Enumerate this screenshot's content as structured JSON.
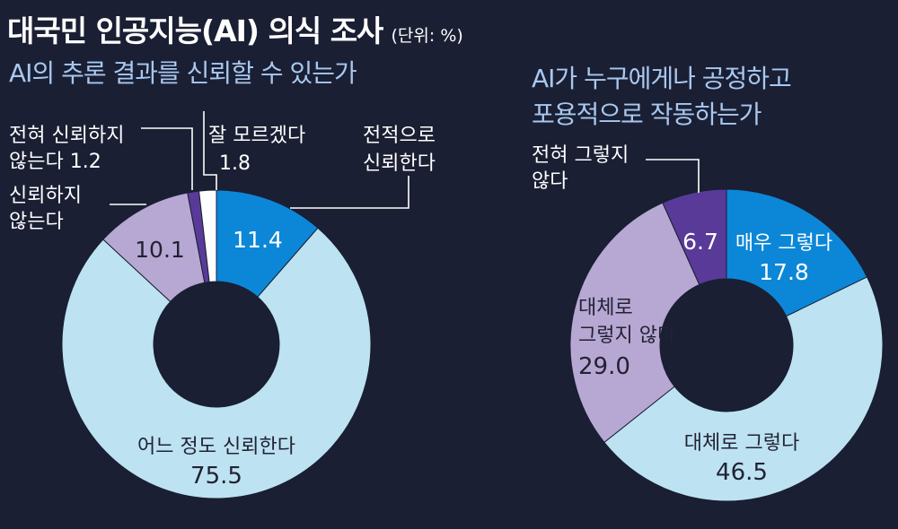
{
  "header": {
    "title": "대국민 인공지능(AI) 의식 조사",
    "unit": "(단위: %)"
  },
  "colors": {
    "dark_blue": "#0c86d6",
    "light_blue": "#bde3f3",
    "lavender": "#b6a7d3",
    "purple": "#5a3a98",
    "white": "#ffffff"
  },
  "chart_data": [
    {
      "type": "pie",
      "title": "AI의 추론 결과를 신뢰할 수 있는가",
      "slices": [
        {
          "label": "전적으로 신뢰한다",
          "value": 11.4,
          "color": "#0c86d6"
        },
        {
          "label": "어느 정도 신뢰한다",
          "value": 75.5,
          "color": "#bde3f3"
        },
        {
          "label": "신뢰하지 않는다",
          "value": 10.1,
          "color": "#b6a7d3"
        },
        {
          "label": "전혀 신뢰하지 않는다",
          "value": 1.2,
          "color": "#5a3a98"
        },
        {
          "label": "잘 모르겠다",
          "value": 1.8,
          "color": "#ffffff"
        }
      ]
    },
    {
      "type": "pie",
      "title": "AI가 누구에게나 공정하고 포용적으로 작동하는가",
      "slices": [
        {
          "label": "매우 그렇다",
          "value": 17.8,
          "color": "#0c86d6"
        },
        {
          "label": "대체로 그렇다",
          "value": 46.5,
          "color": "#bde3f3"
        },
        {
          "label": "대체로 그렇지 않다",
          "value": 29.0,
          "color": "#b6a7d3"
        },
        {
          "label": "전혀 그렇지 않다",
          "value": 6.7,
          "color": "#5a3a98"
        }
      ]
    }
  ],
  "labels": {
    "c1": {
      "s0": {
        "line1": "전적으로",
        "line2": "신뢰한다",
        "value": "11.4"
      },
      "s1": {
        "line1": "어느 정도 신뢰한다",
        "value": "75.5"
      },
      "s2": {
        "line1": "신뢰하지",
        "line2": "않는다",
        "value": "10.1"
      },
      "s3": {
        "line1": "전혀 신뢰하지",
        "line2": "않는다 1.2"
      },
      "s4": {
        "line1": "잘 모르겠다",
        "line2": "1.8"
      }
    },
    "c2": {
      "s0": {
        "line1": "매우 그렇다",
        "value": "17.8"
      },
      "s1": {
        "line1": "대체로 그렇다",
        "value": "46.5"
      },
      "s2": {
        "line1": "대체로",
        "line2": "그렇지 않다",
        "value": "29.0"
      },
      "s3": {
        "line1": "전혀 그렇지",
        "line2": "않다",
        "value": "6.7"
      }
    }
  },
  "subtitles": {
    "c1": "AI의 추론 결과를 신뢰할 수 있는가",
    "c2_line1": "AI가 누구에게나 공정하고",
    "c2_line2": "포용적으로 작동하는가"
  }
}
